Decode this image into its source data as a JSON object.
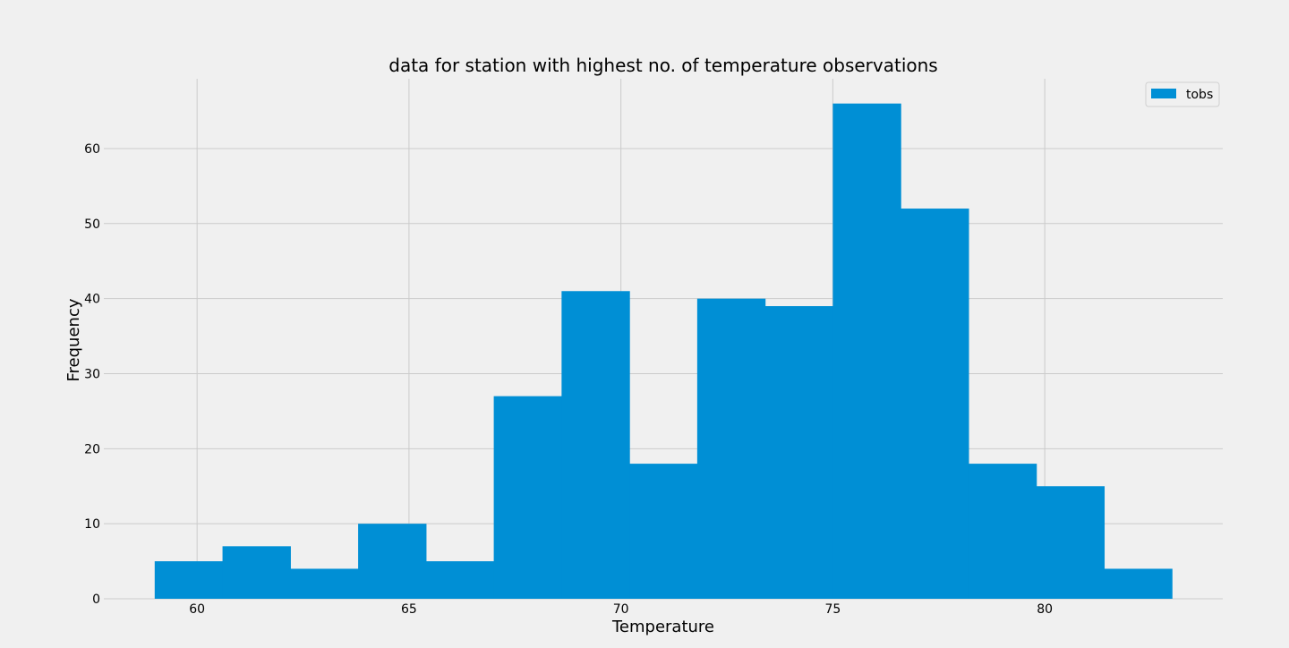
{
  "chart_data": {
    "type": "bar",
    "title": "data for station with highest no. of temperature observations",
    "xlabel": "Temperature",
    "ylabel": "Frequency",
    "xlim": [
      57.8,
      84.2
    ],
    "ylim": [
      0,
      69.3
    ],
    "x_ticks": [
      60,
      65,
      70,
      75,
      80
    ],
    "y_ticks": [
      0,
      10,
      20,
      30,
      40,
      50,
      60
    ],
    "grid": true,
    "legend": {
      "placement": "top-right"
    },
    "series": [
      {
        "name": "tobs",
        "color": "#008fd5",
        "bin_edges": [
          59.0,
          60.6,
          62.2,
          63.8,
          65.4,
          67.0,
          68.6,
          70.2,
          71.8,
          73.4,
          75.0,
          76.6,
          78.2,
          79.8,
          81.4,
          83.0
        ],
        "values": [
          5,
          7,
          4,
          10,
          5,
          27,
          41,
          18,
          40,
          39,
          66,
          52,
          18,
          15,
          4
        ]
      }
    ]
  },
  "style": {
    "background": "#f0f0f0",
    "grid_color": "#cbcbcb",
    "text_color": "#000000"
  }
}
